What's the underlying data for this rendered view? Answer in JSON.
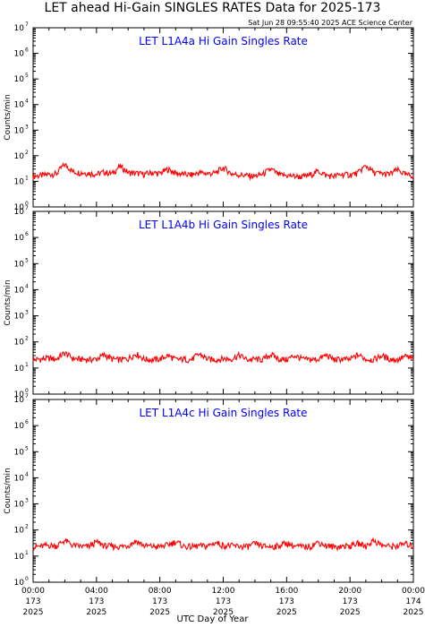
{
  "title": "LET ahead Hi-Gain SINGLES RATES Data for 2025-173",
  "timestamp": "Sat Jun 28 09:55:40 2025 ACE Science Center",
  "xaxis_title": "UTC Day of Year",
  "colors": {
    "series": "#ff0000",
    "panel_title": "#0000ff",
    "frame": "#000000"
  },
  "chart_data": [
    {
      "type": "line",
      "title": "LET L1A4a Hi Gain Singles Rate",
      "ylabel": "Counts/min",
      "yscale": "log",
      "ylim": [
        1,
        10000000
      ],
      "xlim": [
        0,
        24
      ],
      "ytick_exponents": [
        "0",
        "1",
        "2",
        "3",
        "4",
        "5",
        "6",
        "7"
      ],
      "x_ticks": [
        {
          "time": "00:00",
          "day": "173",
          "year": "2025"
        },
        {
          "time": "04:00",
          "day": "173",
          "year": "2025"
        },
        {
          "time": "08:00",
          "day": "173",
          "year": "2025"
        },
        {
          "time": "12:00",
          "day": "173",
          "year": "2025"
        },
        {
          "time": "16:00",
          "day": "173",
          "year": "2025"
        },
        {
          "time": "20:00",
          "day": "173",
          "year": "2025"
        },
        {
          "time": "00:00",
          "day": "174",
          "year": "2025"
        }
      ],
      "show_x_tick_labels": false,
      "series": [
        {
          "baseline": 18,
          "x": [
            0,
            0.5,
            1,
            1.5,
            2,
            2.5,
            3,
            3.5,
            4,
            4.5,
            5,
            5.5,
            6,
            6.5,
            7,
            7.5,
            8,
            8.5,
            9,
            9.5,
            10,
            10.5,
            11,
            11.5,
            12,
            12.5,
            13,
            13.5,
            14,
            14.5,
            15,
            15.5,
            16,
            16.5,
            17,
            17.5,
            18,
            18.5,
            19,
            19.5,
            20,
            20.5,
            21,
            21.5,
            22,
            22.5,
            23,
            23.5,
            24
          ],
          "values": [
            16,
            17,
            19,
            20,
            45,
            24,
            22,
            21,
            19,
            23,
            20,
            38,
            22,
            21,
            19,
            22,
            20,
            30,
            21,
            19,
            18,
            22,
            20,
            21,
            34,
            20,
            18,
            17,
            16,
            19,
            30,
            18,
            17,
            16,
            15,
            18,
            25,
            17,
            16,
            19,
            18,
            21,
            40,
            22,
            20,
            19,
            28,
            18,
            17
          ]
        }
      ]
    },
    {
      "type": "line",
      "title": "LET L1A4b Hi Gain Singles Rate",
      "ylabel": "Counts/min",
      "yscale": "log",
      "ylim": [
        1,
        10000000
      ],
      "xlim": [
        0,
        24
      ],
      "ytick_exponents": [
        "0",
        "1",
        "2",
        "3",
        "4",
        "5",
        "6",
        "7"
      ],
      "x_ticks": [
        {
          "time": "00:00",
          "day": "173",
          "year": "2025"
        },
        {
          "time": "04:00",
          "day": "173",
          "year": "2025"
        },
        {
          "time": "08:00",
          "day": "173",
          "year": "2025"
        },
        {
          "time": "12:00",
          "day": "173",
          "year": "2025"
        },
        {
          "time": "16:00",
          "day": "173",
          "year": "2025"
        },
        {
          "time": "20:00",
          "day": "173",
          "year": "2025"
        },
        {
          "time": "00:00",
          "day": "174",
          "year": "2025"
        }
      ],
      "show_x_tick_labels": false,
      "series": [
        {
          "baseline": 22,
          "x": [
            0,
            0.5,
            1,
            1.5,
            2,
            2.5,
            3,
            3.5,
            4,
            4.5,
            5,
            5.5,
            6,
            6.5,
            7,
            7.5,
            8,
            8.5,
            9,
            9.5,
            10,
            10.5,
            11,
            11.5,
            12,
            12.5,
            13,
            13.5,
            14,
            14.5,
            15,
            15.5,
            16,
            16.5,
            17,
            17.5,
            18,
            18.5,
            19,
            19.5,
            20,
            20.5,
            21,
            21.5,
            22,
            22.5,
            23,
            23.5,
            24
          ],
          "values": [
            21,
            22,
            24,
            22,
            38,
            23,
            22,
            21,
            22,
            32,
            22,
            21,
            23,
            35,
            22,
            21,
            22,
            30,
            21,
            22,
            21,
            34,
            22,
            21,
            23,
            22,
            31,
            21,
            22,
            21,
            33,
            22,
            21,
            30,
            22,
            21,
            22,
            31,
            21,
            22,
            21,
            32,
            22,
            21,
            30,
            22,
            21,
            28,
            22
          ]
        }
      ]
    },
    {
      "type": "line",
      "title": "LET L1A4c Hi Gain Singles Rate",
      "ylabel": "Counts/min",
      "yscale": "log",
      "ylim": [
        1,
        10000000
      ],
      "xlim": [
        0,
        24
      ],
      "ytick_exponents": [
        "0",
        "1",
        "2",
        "3",
        "4",
        "5",
        "6",
        "7"
      ],
      "x_ticks": [
        {
          "time": "00:00",
          "day": "173",
          "year": "2025"
        },
        {
          "time": "04:00",
          "day": "173",
          "year": "2025"
        },
        {
          "time": "08:00",
          "day": "173",
          "year": "2025"
        },
        {
          "time": "12:00",
          "day": "173",
          "year": "2025"
        },
        {
          "time": "16:00",
          "day": "173",
          "year": "2025"
        },
        {
          "time": "20:00",
          "day": "173",
          "year": "2025"
        },
        {
          "time": "00:00",
          "day": "174",
          "year": "2025"
        }
      ],
      "show_x_tick_labels": true,
      "series": [
        {
          "baseline": 24,
          "x": [
            0,
            0.5,
            1,
            1.5,
            2,
            2.5,
            3,
            3.5,
            4,
            4.5,
            5,
            5.5,
            6,
            6.5,
            7,
            7.5,
            8,
            8.5,
            9,
            9.5,
            10,
            10.5,
            11,
            11.5,
            12,
            12.5,
            13,
            13.5,
            14,
            14.5,
            15,
            15.5,
            16,
            16.5,
            17,
            17.5,
            18,
            18.5,
            19,
            19.5,
            20,
            20.5,
            21,
            21.5,
            22,
            22.5,
            23,
            23.5,
            24
          ],
          "values": [
            22,
            24,
            26,
            25,
            40,
            26,
            24,
            23,
            35,
            25,
            24,
            23,
            26,
            38,
            25,
            24,
            23,
            27,
            36,
            24,
            23,
            25,
            24,
            33,
            26,
            25,
            24,
            23,
            30,
            24,
            23,
            25,
            32,
            24,
            23,
            24,
            34,
            25,
            23,
            24,
            25,
            31,
            24,
            40,
            26,
            24,
            25,
            30,
            24
          ]
        }
      ]
    }
  ]
}
